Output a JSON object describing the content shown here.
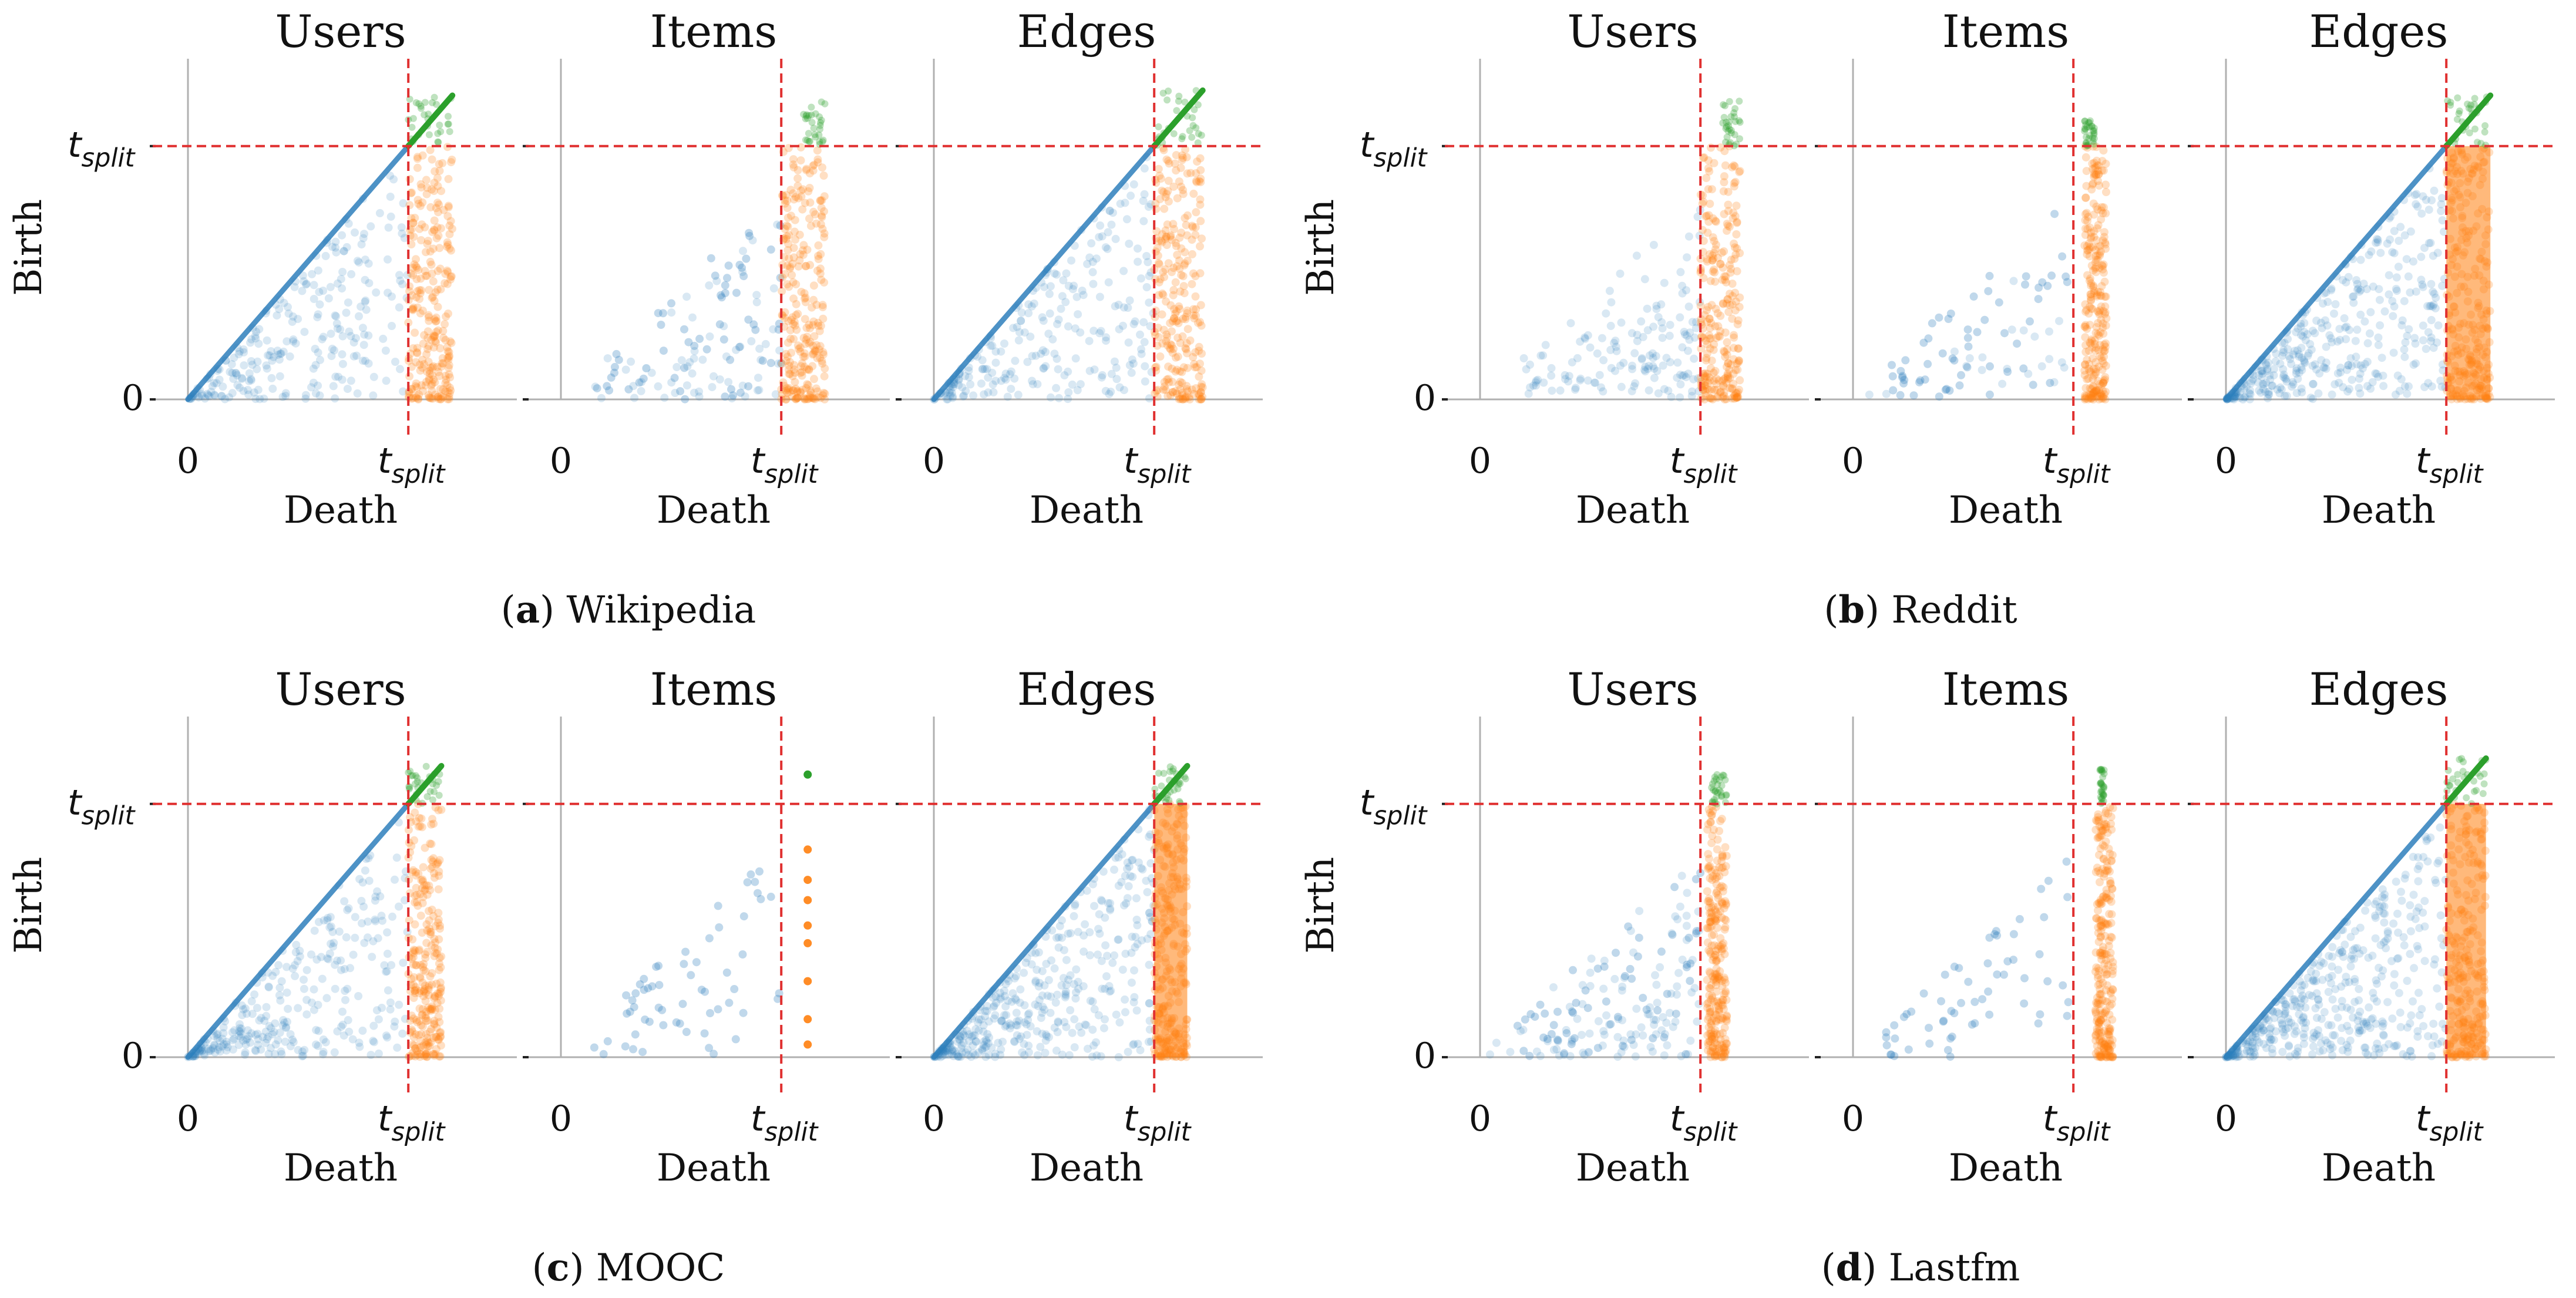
{
  "figure": {
    "colors": {
      "before": "#2f7fbd",
      "after": "#ff7f0e",
      "born_after": "#2ca02c",
      "split_line": "#e03030",
      "axis": "#b0b0b0"
    },
    "tick_labels": {
      "zero": "0",
      "t": "t",
      "split_sub": "split"
    }
  },
  "chart_data": [
    {
      "type": "scatter",
      "dataset": "Wikipedia",
      "letter": "a",
      "ylabel": "Birth",
      "panels": [
        {
          "title": "Users",
          "xlabel": "Death",
          "diagonal": true,
          "density": 0.6,
          "after_range": [
            1.0,
            1.2
          ],
          "green_range": [
            1.0,
            1.2
          ]
        },
        {
          "title": "Items",
          "xlabel": "Death",
          "diagonal": false,
          "density": 0.15,
          "after_range": [
            1.0,
            1.2
          ],
          "green_range": [
            1.1,
            1.2
          ]
        },
        {
          "title": "Edges",
          "xlabel": "Death",
          "diagonal": true,
          "density": 0.6,
          "after_range": [
            1.0,
            1.22
          ],
          "green_range": [
            1.0,
            1.22
          ]
        }
      ]
    },
    {
      "type": "scatter",
      "dataset": "Reddit",
      "letter": "b",
      "ylabel": "Birth",
      "panels": [
        {
          "title": "Users",
          "xlabel": "Death",
          "diagonal": false,
          "density": 0.35,
          "after_range": [
            1.0,
            1.18
          ],
          "green_range": [
            1.1,
            1.18
          ]
        },
        {
          "title": "Items",
          "xlabel": "Death",
          "diagonal": false,
          "density": 0.05,
          "after_range": [
            1.05,
            1.15
          ],
          "green_range": [
            1.05,
            1.1
          ]
        },
        {
          "title": "Edges",
          "xlabel": "Death",
          "diagonal": true,
          "density": 0.9,
          "after_range": [
            1.0,
            1.2
          ],
          "green_range": [
            1.0,
            1.2
          ]
        }
      ]
    },
    {
      "type": "scatter",
      "dataset": "MOOC",
      "letter": "c",
      "ylabel": "Birth",
      "panels": [
        {
          "title": "Users",
          "xlabel": "Death",
          "diagonal": true,
          "density": 0.7,
          "after_range": [
            1.0,
            1.15
          ],
          "green_range": [
            1.0,
            1.15
          ]
        },
        {
          "title": "Items",
          "xlabel": "Death",
          "diagonal": false,
          "density": 0.0,
          "after_range": [
            1.12,
            1.13
          ],
          "green_range": [
            1.12,
            1.13
          ]
        },
        {
          "title": "Edges",
          "xlabel": "Death",
          "diagonal": true,
          "density": 0.95,
          "after_range": [
            1.0,
            1.15
          ],
          "green_range": [
            1.0,
            1.15
          ]
        }
      ]
    },
    {
      "type": "scatter",
      "dataset": "Lastfm",
      "letter": "d",
      "ylabel": "Birth",
      "panels": [
        {
          "title": "Users",
          "xlabel": "Death",
          "diagonal": false,
          "density": 0.25,
          "after_range": [
            1.03,
            1.12
          ],
          "green_range": [
            1.05,
            1.12
          ]
        },
        {
          "title": "Items",
          "xlabel": "Death",
          "diagonal": false,
          "density": 0.0,
          "after_range": [
            1.1,
            1.18
          ],
          "green_range": [
            1.12,
            1.14
          ]
        },
        {
          "title": "Edges",
          "xlabel": "Death",
          "diagonal": true,
          "density": 1.0,
          "after_range": [
            1.0,
            1.18
          ],
          "green_range": [
            1.0,
            1.18
          ]
        }
      ]
    }
  ]
}
